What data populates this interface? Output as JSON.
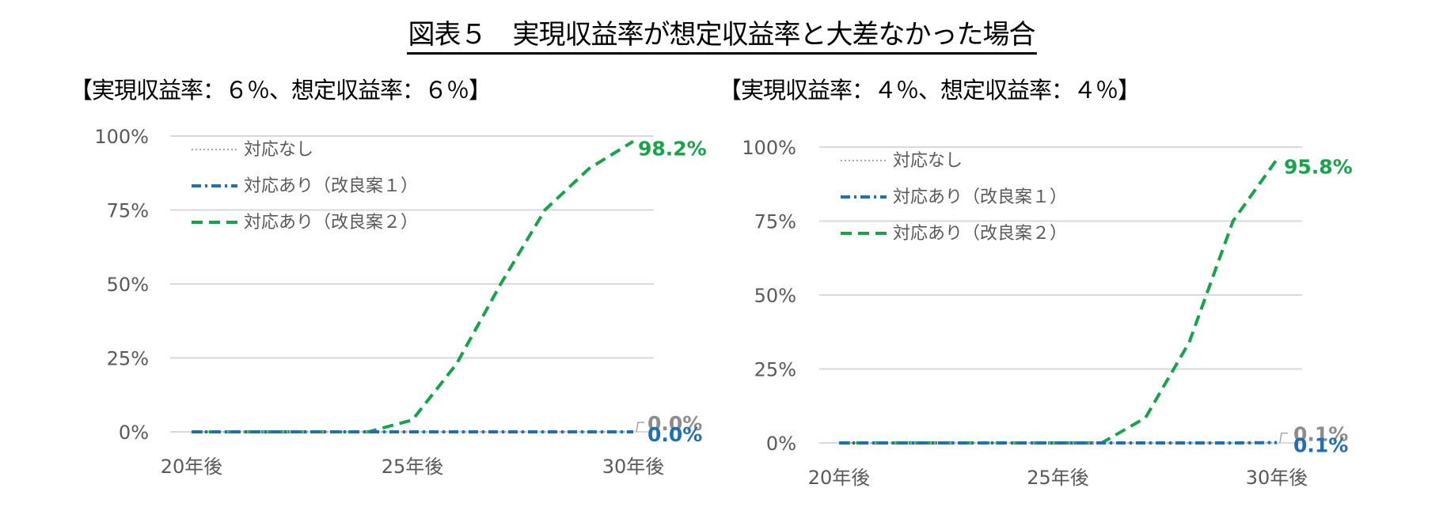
{
  "title": "図表５　実現収益率が想定収益率と大差なかった場合",
  "legend": {
    "items": [
      {
        "label": "対応なし",
        "style": "dotted",
        "color": "#A6A6A6"
      },
      {
        "label": "対応あり（改良案１）",
        "style": "dash-dot",
        "color": "#1F6FB4"
      },
      {
        "label": "対応あり（改良案２）",
        "style": "dashed",
        "color": "#17A34A"
      }
    ]
  },
  "colors": {
    "none": "#A6A6A6",
    "plan1": "#1F6FB4",
    "plan2": "#17A34A",
    "grid": "#D9D9D9",
    "tick": "#595959"
  },
  "chart_data": [
    {
      "type": "line",
      "title": "【実現収益率：６％、想定収益率：６％】",
      "x": [
        "20年後",
        "21年後",
        "22年後",
        "23年後",
        "24年後",
        "25年後",
        "26年後",
        "27年後",
        "28年後",
        "29年後",
        "30年後"
      ],
      "x_tick_labels": [
        "20年後",
        "25年後",
        "30年後"
      ],
      "y_tick_labels": [
        "0%",
        "25%",
        "50%",
        "75%",
        "100%"
      ],
      "ylim": [
        0,
        100
      ],
      "ylabel": "",
      "xlabel": "",
      "grid": true,
      "legend_position": "upper-left-inside",
      "series": [
        {
          "name": "対応なし",
          "values": [
            0,
            0,
            0,
            0,
            0,
            0,
            0,
            0,
            0,
            0,
            0
          ],
          "end_label": "0.0%"
        },
        {
          "name": "対応あり（改良案１）",
          "values": [
            0,
            0,
            0,
            0,
            0,
            0,
            0,
            0,
            0,
            0,
            0
          ],
          "end_label": "0.0%"
        },
        {
          "name": "対応あり（改良案２）",
          "values": [
            0,
            0,
            0,
            0,
            0,
            4,
            23,
            50,
            75,
            89,
            98.2
          ],
          "end_label": "98.2%"
        }
      ]
    },
    {
      "type": "line",
      "title": "【実現収益率：４％、想定収益率：４％】",
      "x": [
        "20年後",
        "21年後",
        "22年後",
        "23年後",
        "24年後",
        "25年後",
        "26年後",
        "27年後",
        "28年後",
        "29年後",
        "30年後"
      ],
      "x_tick_labels": [
        "20年後",
        "25年後",
        "30年後"
      ],
      "y_tick_labels": [
        "0%",
        "25%",
        "50%",
        "75%",
        "100%"
      ],
      "ylim": [
        0,
        100
      ],
      "ylabel": "",
      "xlabel": "",
      "grid": true,
      "legend_position": "upper-left-inside",
      "series": [
        {
          "name": "対応なし",
          "values": [
            0,
            0,
            0,
            0,
            0,
            0,
            0,
            0,
            0,
            0,
            0.1
          ],
          "end_label": "0.1%"
        },
        {
          "name": "対応あり（改良案１）",
          "values": [
            0,
            0,
            0,
            0,
            0,
            0,
            0,
            0,
            0,
            0,
            0.1
          ],
          "end_label": "0.1%"
        },
        {
          "name": "対応あり（改良案２）",
          "values": [
            0,
            0,
            0,
            0,
            0,
            0,
            0,
            8.5,
            34,
            75,
            95.8
          ],
          "end_label": "95.8%"
        }
      ]
    }
  ]
}
